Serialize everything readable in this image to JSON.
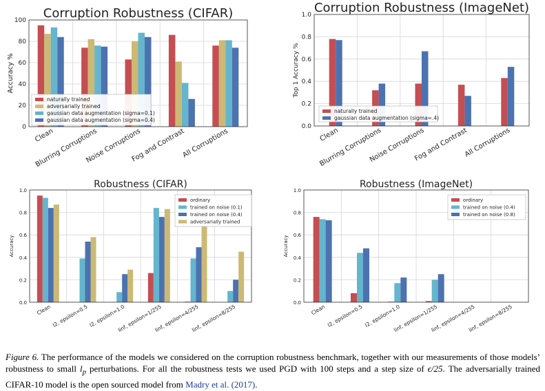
{
  "palette": {
    "red": "#c44e52",
    "gold": "#ccb974",
    "cyan": "#64b5cd",
    "blue": "#4c72b0",
    "grid": "#d5d5d5",
    "axis": "#333333"
  },
  "chart_data": [
    {
      "type": "bar",
      "title": "Corruption Robustness (CIFAR)",
      "ylabel": "Accuracy %",
      "xlabel": "",
      "ylim": [
        0,
        100
      ],
      "yticks": [
        "0",
        "20",
        "40",
        "60",
        "80",
        "100"
      ],
      "grid": true,
      "legend": "bottom-left",
      "categories": [
        "Clean",
        "Blurring Corruptions",
        "Noise Corruptions",
        "Fog and Contrast",
        "All Corruptions"
      ],
      "series": [
        {
          "name": "naturally trained",
          "color": "red",
          "values": [
            95,
            74,
            63,
            86,
            76
          ]
        },
        {
          "name": "adversarially trained",
          "color": "gold",
          "values": [
            87,
            82,
            80,
            61,
            81
          ]
        },
        {
          "name": "gaussian data augmentation (sigma=0.1)",
          "color": "cyan",
          "values": [
            93,
            76,
            88,
            41,
            81
          ]
        },
        {
          "name": "gaussian data augmentation (sigma=0.4)",
          "color": "blue",
          "values": [
            84,
            75,
            84,
            26,
            74
          ]
        }
      ]
    },
    {
      "type": "bar",
      "title": "Corruption Robustness (ImageNet)",
      "ylabel": "Top 1 Accuracy %",
      "xlabel": "",
      "ylim": [
        0,
        1.0
      ],
      "yticks": [
        "0.0",
        "0.2",
        "0.4",
        "0.6",
        "0.8",
        "1.0"
      ],
      "grid": true,
      "legend": "bottom-left",
      "categories": [
        "Clean",
        "Blurring Corruptions",
        "Noise Corruptions",
        "Fog and Contrast",
        "All Corruptions"
      ],
      "series": [
        {
          "name": "naturally trained",
          "color": "red",
          "values": [
            0.78,
            0.32,
            0.38,
            0.37,
            0.43
          ]
        },
        {
          "name": "gaussian data augmentation (sigma=.4)",
          "color": "blue",
          "values": [
            0.77,
            0.38,
            0.67,
            0.27,
            0.53
          ]
        }
      ]
    },
    {
      "type": "bar",
      "title": "Robustness (CIFAR)",
      "ylabel": "Accuracy",
      "xlabel": "",
      "ylim": [
        0,
        1.0
      ],
      "yticks": [
        "0.0",
        "0.2",
        "0.4",
        "0.6",
        "0.8",
        "1.0"
      ],
      "grid": true,
      "legend": "top-right",
      "categories": [
        "Clean",
        "l2, epsilon=0.5",
        "l2, epsilon=1.0",
        "linf, epsilon=1/255",
        "linf, epsilon=4/255",
        "linf, epsilon=8/255"
      ],
      "series": [
        {
          "name": "ordinary",
          "color": "red",
          "values": [
            0.95,
            0.0,
            0.0,
            0.26,
            0.005,
            0.0
          ]
        },
        {
          "name": "trained on noise (0.1)",
          "color": "cyan",
          "values": [
            0.93,
            0.39,
            0.09,
            0.84,
            0.39,
            0.1
          ]
        },
        {
          "name": "trained on noise (0.4)",
          "color": "blue",
          "values": [
            0.84,
            0.54,
            0.25,
            0.76,
            0.49,
            0.2
          ]
        },
        {
          "name": "adversarially trained",
          "color": "gold",
          "values": [
            0.87,
            0.58,
            0.29,
            0.83,
            0.68,
            0.45
          ]
        }
      ]
    },
    {
      "type": "bar",
      "title": "Robustness (ImageNet)",
      "ylabel": "Accuracy",
      "xlabel": "",
      "ylim": [
        0,
        1.0
      ],
      "yticks": [
        "0.0",
        "0.2",
        "0.4",
        "0.6",
        "0.8",
        "1.0"
      ],
      "grid": true,
      "legend": "top-right",
      "categories": [
        "Clean",
        "l2, epsilon=0.5",
        "l2, epsilon=1.0",
        "linf, epsilon=1/255",
        "linf, epsilon=4/255",
        "linf, epsilon=8/255"
      ],
      "series": [
        {
          "name": "ordinary",
          "color": "red",
          "values": [
            0.76,
            0.08,
            0.005,
            0.01,
            0.0,
            0.0
          ]
        },
        {
          "name": "trained on noise (0.4)",
          "color": "cyan",
          "values": [
            0.74,
            0.44,
            0.17,
            0.2,
            0.0,
            0.0
          ]
        },
        {
          "name": "trained on noise (0.8)",
          "color": "blue",
          "values": [
            0.73,
            0.48,
            0.22,
            0.25,
            0.0,
            0.0
          ]
        }
      ]
    }
  ],
  "caption": {
    "label": "Figure 6.",
    "text_1": " The performance of the models we considered on the corruption robustness benchmark, together with our measurements of those models’ robustness to small ",
    "lp": "l",
    "lp_sub": "p",
    "text_2": " perturbations. For all the robustness tests we used PGD with 100 steps and a step size of ",
    "eps": "ϵ/25",
    "text_3": ". The adversarially trained CIFAR-10 model is the open sourced model from ",
    "cite": "Madry et al. (2017)",
    "text_4": "."
  }
}
